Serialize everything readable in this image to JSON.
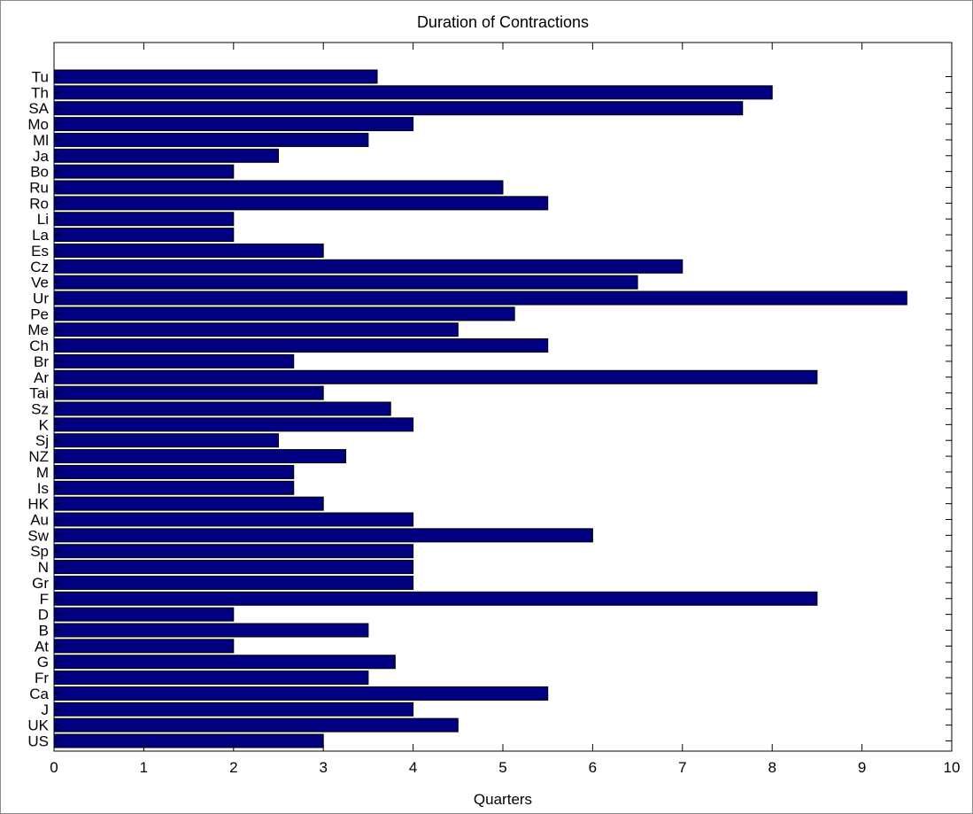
{
  "chart_data": {
    "type": "bar",
    "orientation": "horizontal",
    "title": "Duration of Contractions",
    "xlabel": "Quarters",
    "ylabel": "",
    "xlim": [
      0,
      10
    ],
    "xticks": [
      "0",
      "1",
      "2",
      "3",
      "4",
      "5",
      "6",
      "7",
      "8",
      "9",
      "10"
    ],
    "grid": false,
    "bar_color": "#000080",
    "categories": [
      "Tu",
      "Th",
      "SA",
      "Mo",
      "Ml",
      "Ja",
      "Bo",
      "Ru",
      "Ro",
      "Li",
      "La",
      "Es",
      "Cz",
      "Ve",
      "Ur",
      "Pe",
      "Me",
      "Ch",
      "Br",
      "Ar",
      "Tai",
      "Sz",
      "K",
      "Sj",
      "NZ",
      "M",
      "Is",
      "HK",
      "Au",
      "Sw",
      "Sp",
      "N",
      "Gr",
      "F",
      "D",
      "B",
      "At",
      "G",
      "Fr",
      "Ca",
      "J",
      "UK",
      "US"
    ],
    "values": [
      3.6,
      8.0,
      7.67,
      4.0,
      3.5,
      2.5,
      2.0,
      5.0,
      5.5,
      2.0,
      2.0,
      3.0,
      7.0,
      6.5,
      9.5,
      5.13,
      4.5,
      5.5,
      2.67,
      8.5,
      3.0,
      3.75,
      4.0,
      2.5,
      3.25,
      2.67,
      2.67,
      3.0,
      4.0,
      6.0,
      4.0,
      4.0,
      4.0,
      8.5,
      2.0,
      3.5,
      2.0,
      3.8,
      3.5,
      5.5,
      4.0,
      4.5,
      3.0
    ]
  }
}
